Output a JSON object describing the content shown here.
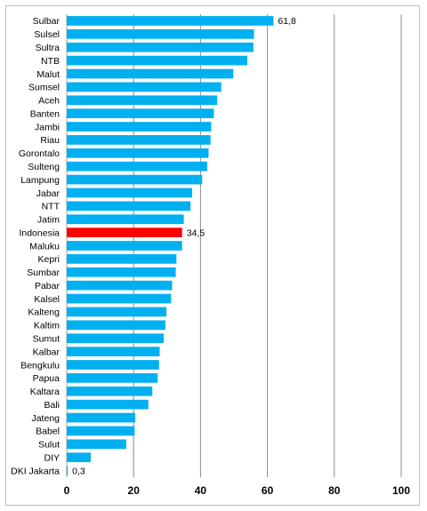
{
  "chart_data": {
    "type": "bar",
    "orientation": "horizontal",
    "title": "",
    "xlabel": "",
    "ylabel": "",
    "xlim": [
      0,
      100
    ],
    "xticks": [
      0,
      20,
      40,
      60,
      80,
      100
    ],
    "xtick_labels": [
      "0",
      "20",
      "40",
      "60",
      "80",
      "100"
    ],
    "grid": "vertical",
    "legend": "none",
    "bar_color": "#00b0f0",
    "highlight_color": "#ff0000",
    "highlight_category": "Indonesia",
    "categories": [
      "Sulbar",
      "Sulsel",
      "Sultra",
      "NTB",
      "Malut",
      "Sumsel",
      "Aceh",
      "Banten",
      "Jambi",
      "Riau",
      "Gorontalo",
      "Sulteng",
      "Lampung",
      "Jabar",
      "NTT",
      "Jatim",
      "Indonesia",
      "Maluku",
      "Kepri",
      "Sumbar",
      "Pabar",
      "Kalsel",
      "Kalteng",
      "Kaltim",
      "Sumut",
      "Kalbar",
      "Bengkulu",
      "Papua",
      "Kaltara",
      "Bali",
      "Jateng",
      "Babel",
      "Sulut",
      "DIY",
      "DKI Jakarta"
    ],
    "values": [
      61.8,
      56.0,
      55.8,
      54.0,
      49.8,
      46.2,
      45.0,
      44.0,
      43.2,
      43.0,
      42.4,
      42.0,
      40.5,
      37.5,
      37.0,
      35.0,
      34.5,
      34.5,
      32.8,
      32.6,
      31.5,
      31.2,
      29.8,
      29.5,
      29.0,
      27.8,
      27.6,
      27.2,
      25.6,
      24.4,
      20.5,
      20.3,
      17.8,
      7.2,
      0.3
    ],
    "data_labels": [
      {
        "category": "Sulbar",
        "text": "61,8"
      },
      {
        "category": "Indonesia",
        "text": "34,5"
      },
      {
        "category": "DKI Jakarta",
        "text": "0,3"
      }
    ]
  }
}
